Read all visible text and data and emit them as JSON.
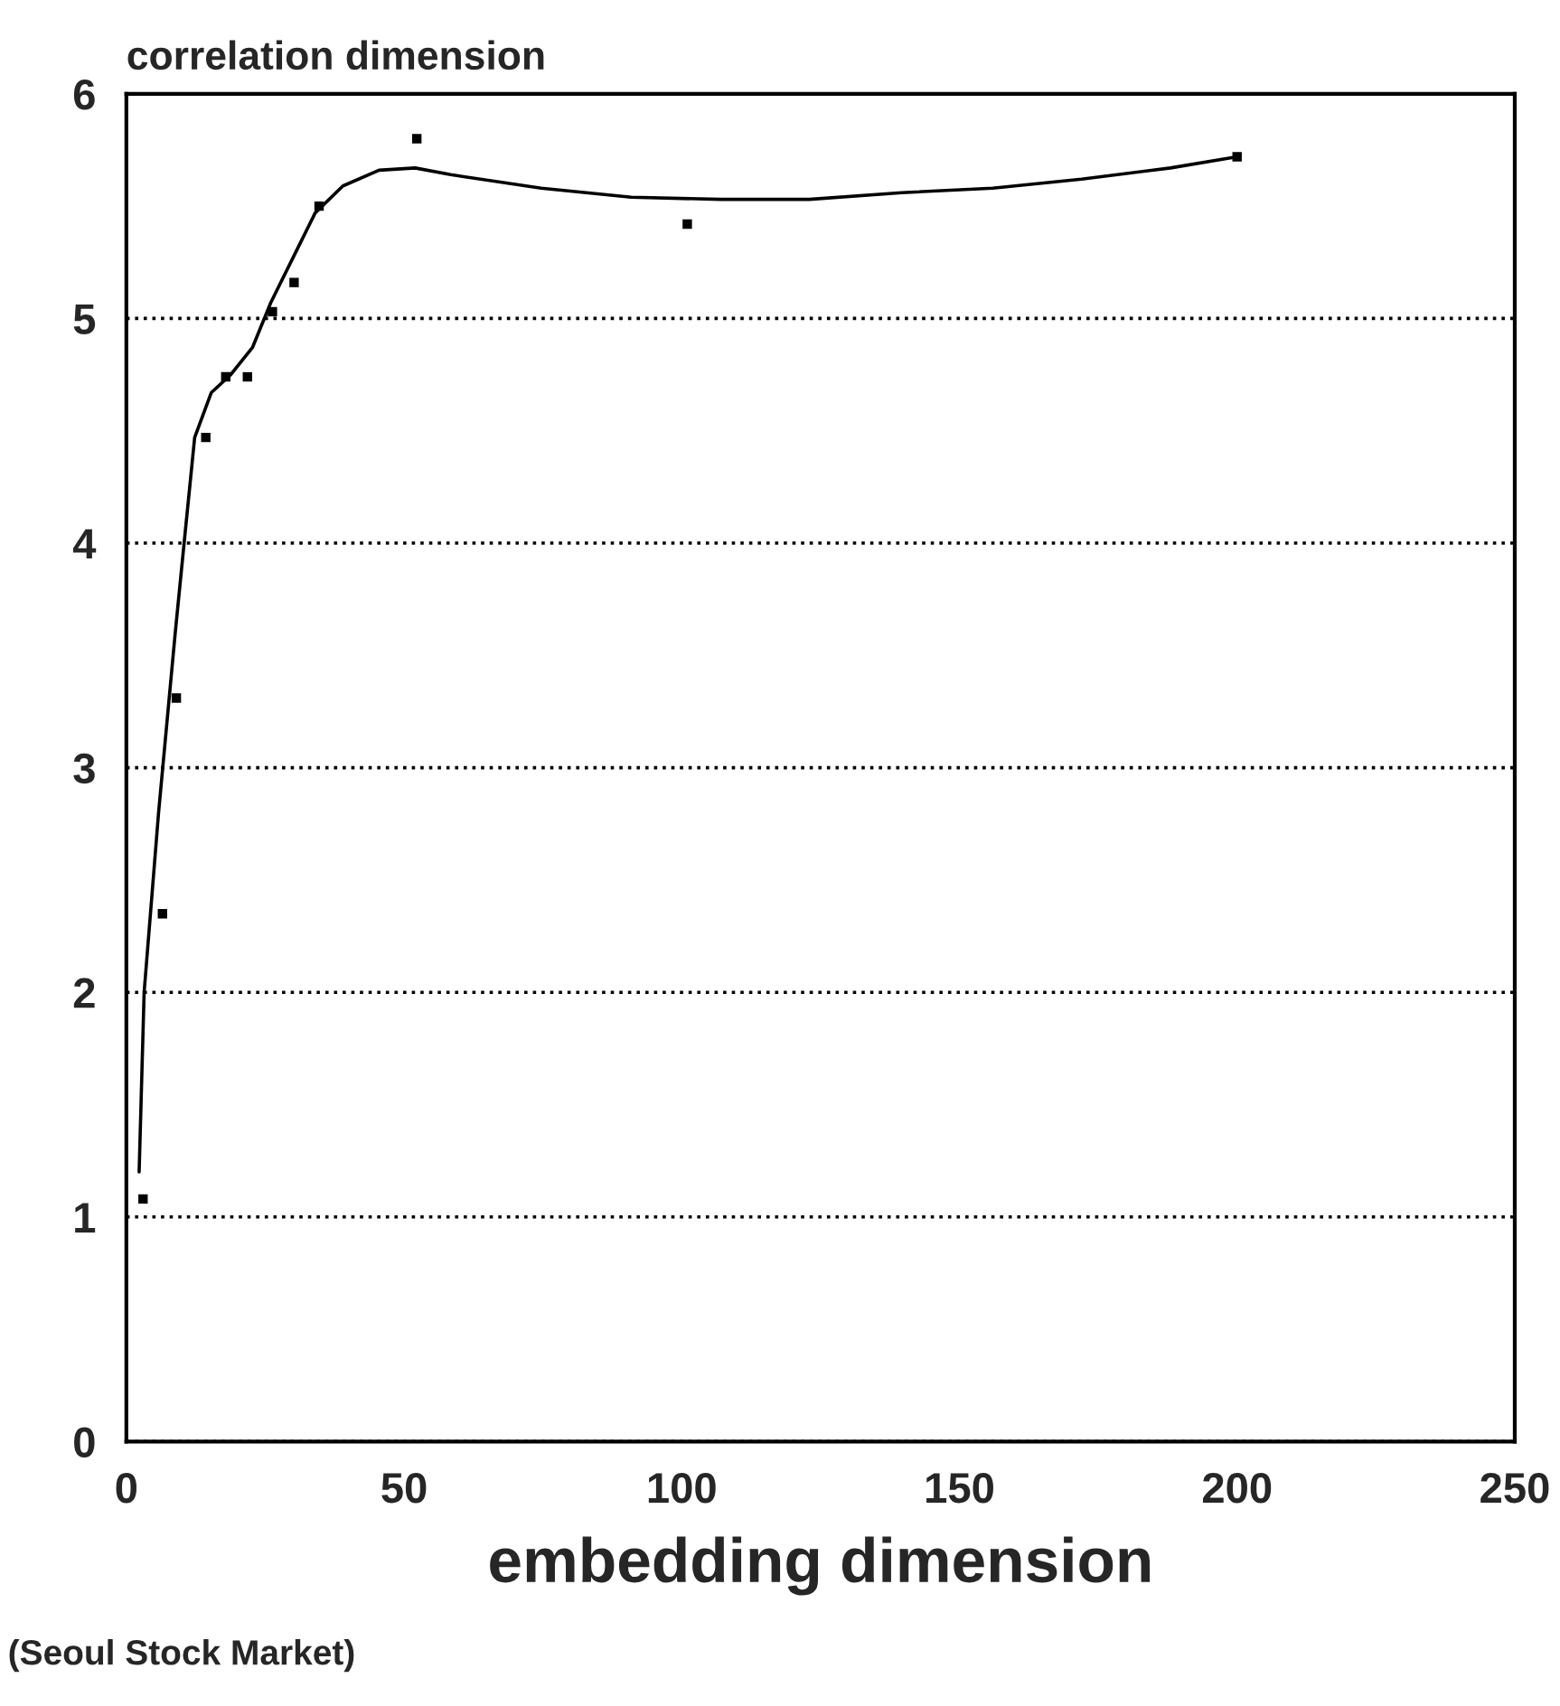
{
  "chart_data": {
    "type": "scatter",
    "xlabel": "embedding dimension",
    "ylabel": "correlation dimension",
    "annotations": [
      "(Seoul Stock Market)"
    ],
    "xlim": [
      0,
      250
    ],
    "ylim": [
      0,
      6
    ],
    "xticks": [
      0,
      50,
      100,
      150,
      200,
      250
    ],
    "yticks": [
      0,
      1,
      2,
      3,
      4,
      5,
      6
    ],
    "grid": "y",
    "legend": false,
    "series": [
      {
        "color": "#000000",
        "marker": "square",
        "x": [
          3,
          6.5,
          9,
          14.3,
          17.9,
          21.8,
          26.3,
          30.2,
          34.7,
          52.3,
          101,
          200
        ],
        "values": [
          1.08,
          2.35,
          3.31,
          4.47,
          4.74,
          4.74,
          5.03,
          5.16,
          5.5,
          5.8,
          5.42,
          5.72
        ]
      },
      {
        "type": "line",
        "color": "#000000",
        "marker": "none",
        "line_style": "solid",
        "x": [
          2.3,
          3.2,
          5.8,
          8.8,
          10.4,
          12.3,
          15.3,
          18.8,
          22.7,
          26,
          30.8,
          34,
          39,
          45.5,
          52,
          58.4,
          74.7,
          90.9,
          107,
          123,
          139.6,
          156,
          172,
          188,
          200
        ],
        "values": [
          1.2,
          2.0,
          2.8,
          3.6,
          4.0,
          4.47,
          4.67,
          4.75,
          4.87,
          5.07,
          5.31,
          5.47,
          5.59,
          5.66,
          5.67,
          5.64,
          5.58,
          5.54,
          5.53,
          5.53,
          5.56,
          5.58,
          5.62,
          5.67,
          5.72
        ]
      }
    ]
  }
}
